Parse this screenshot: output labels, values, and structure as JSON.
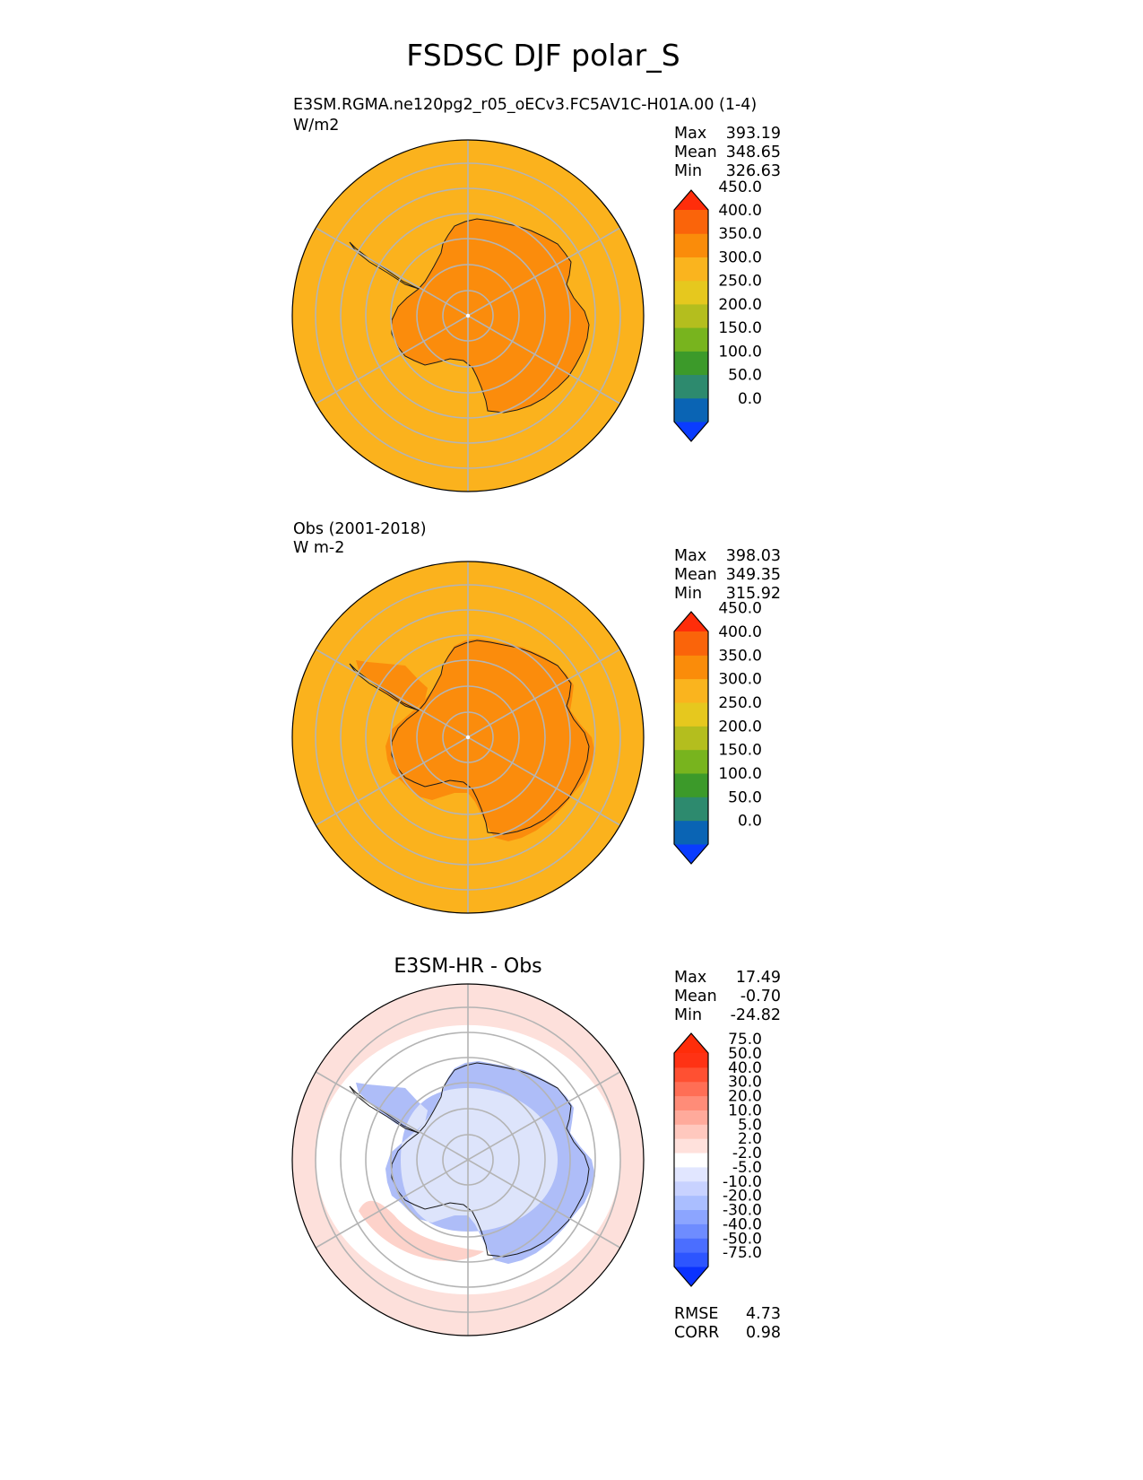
{
  "figure": {
    "title": "FSDSC DJF polar_S"
  },
  "chart_data": [
    {
      "type": "heatmap",
      "projection": "south-polar-stereographic",
      "title_left": "E3SM.RGMA.ne120pg2_r05_oECv3.FC5AV1C-H01A.00 (1-4)",
      "units": "W/m2",
      "stats": {
        "max": "393.19",
        "mean": "348.65",
        "min": "326.63"
      },
      "stat_labels": {
        "max": "Max",
        "mean": "Mean",
        "min": "Min"
      },
      "colorbar": {
        "levels": [
          "0.0",
          "50.0",
          "100.0",
          "150.0",
          "200.0",
          "250.0",
          "300.0",
          "350.0",
          "400.0",
          "450.0"
        ],
        "colors": [
          "#0a3cff",
          "#0a64b4",
          "#2d8a6e",
          "#3c9a2a",
          "#78b41e",
          "#b4be1e",
          "#e6c81e",
          "#fab41e",
          "#fa8c0a",
          "#fa640a",
          "#ff2d0a"
        ],
        "extend": "both"
      },
      "field_summary": {
        "ocean_value": 325,
        "continent_value": 375
      },
      "colors": {
        "ocean": "#fbb21d",
        "continent": "#fb8c0c"
      }
    },
    {
      "type": "heatmap",
      "projection": "south-polar-stereographic",
      "title_left": "Obs (2001-2018)",
      "units": "W m-2",
      "stats": {
        "max": "398.03",
        "mean": "349.35",
        "min": "315.92"
      },
      "stat_labels": {
        "max": "Max",
        "mean": "Mean",
        "min": "Min"
      },
      "colorbar": {
        "levels": [
          "0.0",
          "50.0",
          "100.0",
          "150.0",
          "200.0",
          "250.0",
          "300.0",
          "350.0",
          "400.0",
          "450.0"
        ],
        "colors": [
          "#0a3cff",
          "#0a64b4",
          "#2d8a6e",
          "#3c9a2a",
          "#78b41e",
          "#b4be1e",
          "#e6c81e",
          "#fab41e",
          "#fa8c0a",
          "#fa640a",
          "#ff2d0a"
        ],
        "extend": "both"
      },
      "field_summary": {
        "ocean_value": 325,
        "continent_value": 375
      },
      "colors": {
        "ocean": "#fbb21d",
        "continent": "#fb8c0c"
      }
    },
    {
      "type": "heatmap",
      "projection": "south-polar-stereographic",
      "title_center": "E3SM-HR - Obs",
      "stats": {
        "max": "17.49",
        "mean": "-0.70",
        "min": "-24.82"
      },
      "stat_labels": {
        "max": "Max",
        "mean": "Mean",
        "min": "Min"
      },
      "metrics": {
        "rmse": "4.73",
        "corr": "0.98"
      },
      "metric_labels": {
        "rmse": "RMSE",
        "corr": "CORR"
      },
      "colorbar": {
        "levels": [
          "-75.0",
          "-50.0",
          "-40.0",
          "-30.0",
          "-20.0",
          "-10.0",
          "-5.0",
          "-2.0",
          "2.0",
          "5.0",
          "10.0",
          "20.0",
          "30.0",
          "40.0",
          "50.0",
          "75.0"
        ],
        "colors": [
          "#0a32ff",
          "#2d55ff",
          "#4b6eff",
          "#6e8cff",
          "#8ca5ff",
          "#aabeff",
          "#c8d2ff",
          "#e1e6ff",
          "#ffffff",
          "#ffe1dc",
          "#ffc8be",
          "#ffaa9b",
          "#ff8c78",
          "#ff6e55",
          "#ff5032",
          "#ff3214",
          "#ff2d0a"
        ],
        "extend": "both"
      },
      "field_summary": {
        "ocean_value": 1,
        "continent_value": -5
      },
      "colors": {
        "ocean": "#ffffff",
        "continent": "#dde4fb"
      }
    }
  ]
}
